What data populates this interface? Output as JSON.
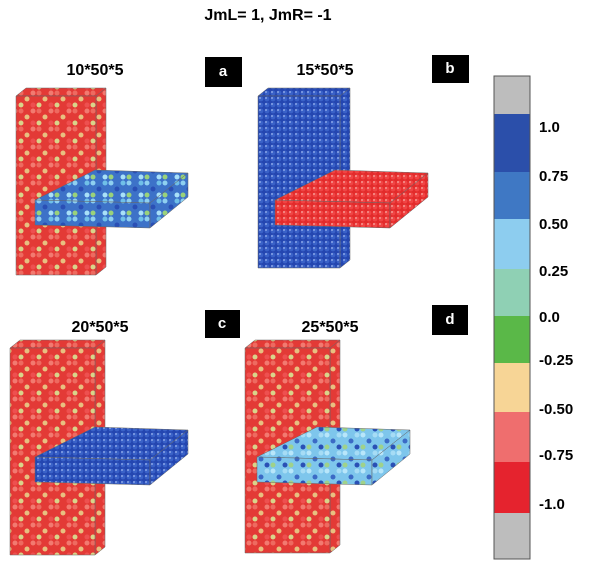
{
  "title": "JmL= 1, JmR= -1",
  "panels": [
    {
      "size": "10*50*5",
      "label": "a"
    },
    {
      "size": "15*50*5",
      "label": "b"
    },
    {
      "size": "20*50*5",
      "label": "c"
    },
    {
      "size": "25*50*5",
      "label": "d"
    }
  ],
  "colorbar": {
    "labels": [
      "1.0",
      "0.75",
      "0.50",
      "0.25",
      "0.0",
      "-0.25",
      "-0.50",
      "-0.75",
      "-1.0"
    ]
  }
}
